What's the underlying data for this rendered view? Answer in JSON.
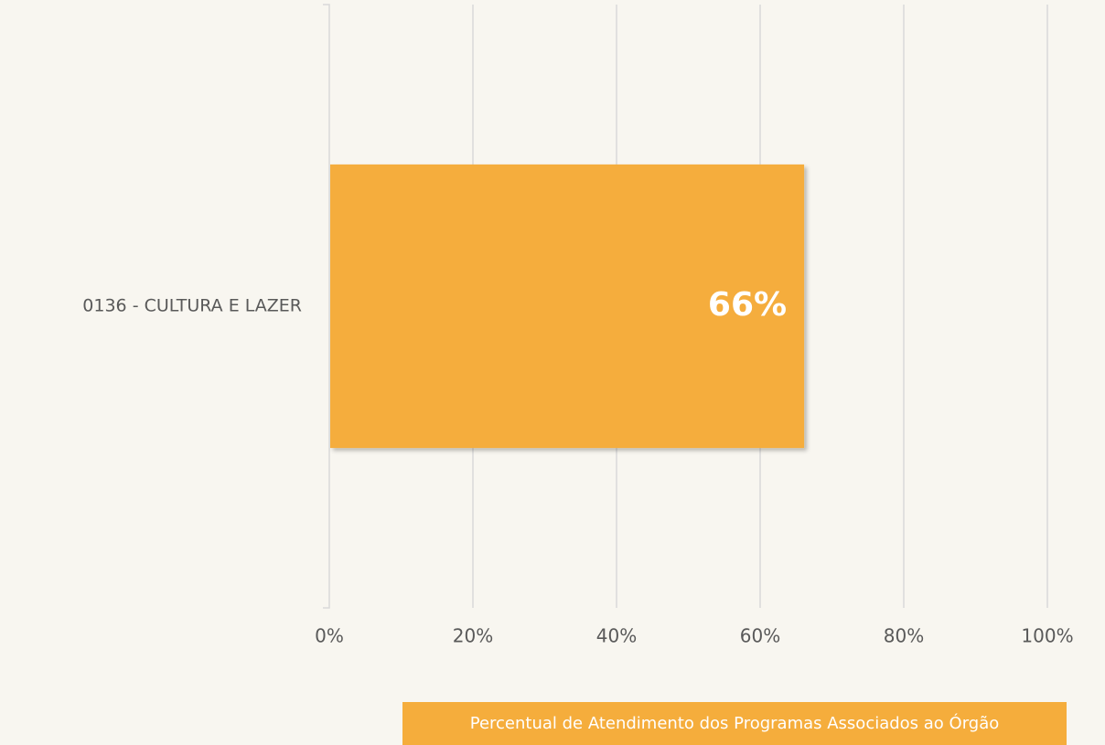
{
  "chart_data": {
    "type": "bar",
    "orientation": "horizontal",
    "categories": [
      "0136 - CULTURA E LAZER"
    ],
    "series": [
      {
        "name": "Percentual de Atendimento dos Programas Associados ao Órgão",
        "color": "#f5ad3c",
        "values": [
          66
        ],
        "value_labels": [
          "66%"
        ]
      }
    ],
    "xlim": [
      0,
      100
    ],
    "xticks": [
      {
        "value": 0,
        "label": "0%"
      },
      {
        "value": 20,
        "label": "20%"
      },
      {
        "value": 40,
        "label": "40%"
      },
      {
        "value": 60,
        "label": "60%"
      },
      {
        "value": 80,
        "label": "80%"
      },
      {
        "value": 100,
        "label": "100%"
      }
    ],
    "grid": true,
    "legend": "bottom"
  }
}
